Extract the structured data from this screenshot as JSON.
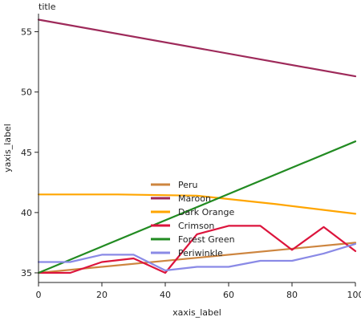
{
  "chart_data": {
    "type": "line",
    "title": "title",
    "xlabel": "xaxis_label",
    "ylabel": "yaxis_label",
    "xlim": [
      0,
      100
    ],
    "ylim": [
      34.2,
      56.5
    ],
    "x_ticks": [
      0,
      20,
      40,
      60,
      80,
      100
    ],
    "y_ticks": [
      35,
      40,
      45,
      50,
      55
    ],
    "grid": false,
    "legend_position": "center-right",
    "series": [
      {
        "name": "Peru",
        "color": "#cd853f",
        "x": [
          0,
          100
        ],
        "y": [
          35.0,
          37.5
        ]
      },
      {
        "name": "Maroon",
        "color": "#9e2a5a",
        "x": [
          0,
          100
        ],
        "y": [
          56.0,
          51.3
        ]
      },
      {
        "name": "Dark Orange",
        "color": "#ffa500",
        "x": [
          0,
          25,
          50,
          75,
          100
        ],
        "y": [
          41.5,
          41.5,
          41.4,
          40.7,
          39.9
        ]
      },
      {
        "name": "Crimson",
        "color": "#dc143c",
        "x": [
          0,
          10,
          20,
          30,
          40,
          50,
          60,
          70,
          80,
          90,
          100
        ],
        "y": [
          35.0,
          35.0,
          35.9,
          36.2,
          35.0,
          38.2,
          38.9,
          38.9,
          36.9,
          38.8,
          36.8
        ]
      },
      {
        "name": "Forest Green",
        "color": "#228b22",
        "x": [
          0,
          100
        ],
        "y": [
          35.0,
          45.9
        ]
      },
      {
        "name": "Periwinkle",
        "color": "#8a8ae6",
        "x": [
          0,
          10,
          20,
          30,
          40,
          50,
          60,
          70,
          80,
          90,
          100
        ],
        "y": [
          35.9,
          35.9,
          36.5,
          36.5,
          35.2,
          35.5,
          35.5,
          36.0,
          36.0,
          36.6,
          37.4
        ]
      }
    ]
  }
}
